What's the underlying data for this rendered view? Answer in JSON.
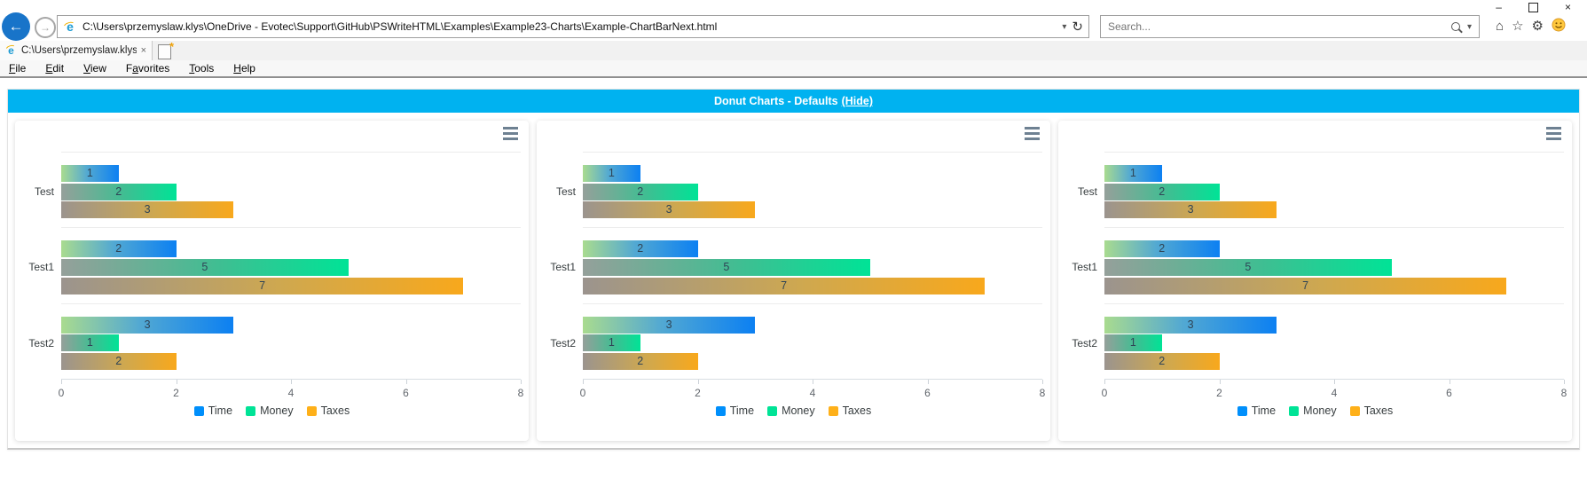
{
  "browser": {
    "window_controls": {
      "minimize_icon": "–",
      "close_icon": "×"
    },
    "toolbar": {
      "back_icon": "←",
      "forward_icon": "→",
      "address_url": "C:\\Users\\przemyslaw.klys\\OneDrive - Evotec\\Support\\GitHub\\PSWriteHTML\\Examples\\Example23-Charts\\Example-ChartBarNext.html",
      "address_dropdown_icon": "▾",
      "refresh_icon": "↻",
      "search_placeholder": "Search...",
      "search_dropdown_icon": "▾",
      "home_icon": "⌂",
      "favorites_icon": "☆",
      "settings_icon": "⚙"
    },
    "tab": {
      "title": "C:\\Users\\przemyslaw.klys\\...",
      "close_icon": "×"
    },
    "menu": [
      {
        "pre": "",
        "u": "F",
        "rest": "ile"
      },
      {
        "pre": "",
        "u": "E",
        "rest": "dit"
      },
      {
        "pre": "",
        "u": "V",
        "rest": "iew"
      },
      {
        "pre": "F",
        "u": "a",
        "rest": "vorites"
      },
      {
        "pre": "",
        "u": "T",
        "rest": "ools"
      },
      {
        "pre": "",
        "u": "H",
        "rest": "elp"
      }
    ]
  },
  "page": {
    "header": {
      "title": "Donut Charts - Defaults",
      "hide_link": "(Hide)",
      "accent_color": "#00b2f0"
    }
  },
  "chart_data": [
    {
      "type": "bar",
      "orientation": "horizontal",
      "categories": [
        "Test",
        "Test1",
        "Test2"
      ],
      "series": [
        {
          "name": "Time",
          "color": "#008FFB",
          "values": [
            1,
            2,
            3
          ]
        },
        {
          "name": "Money",
          "color": "#00E396",
          "values": [
            2,
            5,
            1
          ]
        },
        {
          "name": "Taxes",
          "color": "#FEB019",
          "values": [
            3,
            7,
            2
          ]
        }
      ],
      "xlim": [
        0,
        8
      ],
      "xticks": [
        0,
        2,
        4,
        6,
        8
      ],
      "legend_position": "bottom",
      "grid": "horizontal-row-lines",
      "data_labels": true
    },
    {
      "type": "bar",
      "orientation": "horizontal",
      "categories": [
        "Test",
        "Test1",
        "Test2"
      ],
      "series": [
        {
          "name": "Time",
          "color": "#008FFB",
          "values": [
            1,
            2,
            3
          ]
        },
        {
          "name": "Money",
          "color": "#00E396",
          "values": [
            2,
            5,
            1
          ]
        },
        {
          "name": "Taxes",
          "color": "#FEB019",
          "values": [
            3,
            7,
            2
          ]
        }
      ],
      "xlim": [
        0,
        8
      ],
      "xticks": [
        0,
        2,
        4,
        6,
        8
      ],
      "legend_position": "bottom",
      "grid": "horizontal-row-lines",
      "data_labels": true
    },
    {
      "type": "bar",
      "orientation": "horizontal",
      "categories": [
        "Test",
        "Test1",
        "Test2"
      ],
      "series": [
        {
          "name": "Time",
          "color": "#008FFB",
          "values": [
            1,
            2,
            3
          ]
        },
        {
          "name": "Money",
          "color": "#00E396",
          "values": [
            2,
            5,
            1
          ]
        },
        {
          "name": "Taxes",
          "color": "#FEB019",
          "values": [
            3,
            7,
            2
          ]
        }
      ],
      "xlim": [
        0,
        8
      ],
      "xticks": [
        0,
        2,
        4,
        6,
        8
      ],
      "legend_position": "bottom",
      "grid": "horizontal-row-lines",
      "data_labels": true
    }
  ]
}
